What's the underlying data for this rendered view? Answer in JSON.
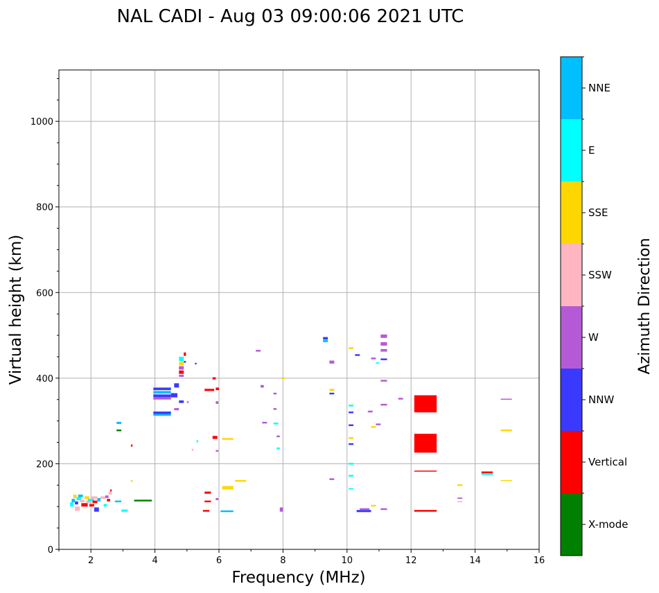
{
  "chart_data": {
    "type": "scatter",
    "title": "NAL CADI - Aug 03 09:00:06 2021 UTC",
    "xlabel": "Frequency (MHz)",
    "ylabel": "Virtual height (km)",
    "xlim": [
      1,
      16
    ],
    "ylim": [
      0,
      1120
    ],
    "xticks": [
      2,
      4,
      6,
      8,
      10,
      12,
      14,
      16
    ],
    "yticks": [
      0,
      200,
      400,
      600,
      800,
      1000
    ],
    "grid": true,
    "colorbar": {
      "label": "Azimuth Direction",
      "categories": [
        {
          "name": "X-mode",
          "color": "#008000"
        },
        {
          "name": "Vertical",
          "color": "#ff0000"
        },
        {
          "name": "NNW",
          "color": "#3a3aff"
        },
        {
          "name": "W",
          "color": "#b45ad6"
        },
        {
          "name": "SSW",
          "color": "#ffb6c1"
        },
        {
          "name": "SSE",
          "color": "#ffd700"
        },
        {
          "name": "E",
          "color": "#00ffff"
        },
        {
          "name": "NNE",
          "color": "#00bfff"
        }
      ]
    },
    "points": [
      {
        "f": 1.35,
        "f2": 1.45,
        "h": 100,
        "h2": 110,
        "c": "E"
      },
      {
        "f": 1.4,
        "f2": 1.5,
        "h": 110,
        "h2": 118,
        "c": "NNE"
      },
      {
        "f": 1.45,
        "f2": 1.55,
        "h": 120,
        "h2": 128,
        "c": "SSE"
      },
      {
        "f": 1.5,
        "f2": 1.6,
        "h": 105,
        "h2": 112,
        "c": "NNW"
      },
      {
        "f": 1.5,
        "f2": 1.65,
        "h": 90,
        "h2": 100,
        "c": "SSW"
      },
      {
        "f": 1.55,
        "f2": 1.7,
        "h": 115,
        "h2": 122,
        "c": "E"
      },
      {
        "f": 1.6,
        "f2": 1.75,
        "h": 122,
        "h2": 128,
        "c": "NNE"
      },
      {
        "f": 1.65,
        "f2": 1.8,
        "h": 110,
        "h2": 116,
        "c": "SSW"
      },
      {
        "f": 1.7,
        "f2": 1.9,
        "h": 100,
        "h2": 108,
        "c": "Vertical"
      },
      {
        "f": 1.8,
        "f2": 1.95,
        "h": 118,
        "h2": 124,
        "c": "SSE"
      },
      {
        "f": 1.85,
        "f2": 2.0,
        "h": 108,
        "h2": 114,
        "c": "SSW"
      },
      {
        "f": 1.9,
        "f2": 2.1,
        "h": 112,
        "h2": 118,
        "c": "E"
      },
      {
        "f": 1.95,
        "f2": 2.1,
        "h": 100,
        "h2": 106,
        "c": "Vertical"
      },
      {
        "f": 2.0,
        "f2": 2.2,
        "h": 118,
        "h2": 124,
        "c": "SSW"
      },
      {
        "f": 2.05,
        "f2": 2.2,
        "h": 108,
        "h2": 114,
        "c": "Vertical"
      },
      {
        "f": 2.1,
        "f2": 2.25,
        "h": 88,
        "h2": 98,
        "c": "NNW"
      },
      {
        "f": 2.2,
        "f2": 2.3,
        "h": 112,
        "h2": 120,
        "c": "NNE"
      },
      {
        "f": 2.3,
        "f2": 2.45,
        "h": 118,
        "h2": 124,
        "c": "SSW"
      },
      {
        "f": 2.4,
        "f2": 2.5,
        "h": 100,
        "h2": 106,
        "c": "E"
      },
      {
        "f": 2.45,
        "f2": 2.55,
        "h": 120,
        "h2": 126,
        "c": "W"
      },
      {
        "f": 2.5,
        "f2": 2.6,
        "h": 112,
        "h2": 118,
        "c": "Vertical"
      },
      {
        "f": 2.55,
        "f2": 2.65,
        "h": 128,
        "h2": 134,
        "c": "SSW"
      },
      {
        "f": 2.6,
        "f2": 2.65,
        "h": 135,
        "h2": 140,
        "c": "Vertical"
      },
      {
        "f": 2.8,
        "f2": 2.95,
        "h": 293,
        "h2": 298,
        "c": "NNE"
      },
      {
        "f": 2.8,
        "f2": 2.95,
        "h": 276,
        "h2": 280,
        "c": "X-mode"
      },
      {
        "f": 2.75,
        "f2": 2.95,
        "h": 110,
        "h2": 114,
        "c": "NNE"
      },
      {
        "f": 2.95,
        "f2": 3.15,
        "h": 88,
        "h2": 93,
        "c": "E"
      },
      {
        "f": 3.35,
        "f2": 3.9,
        "h": 112,
        "h2": 116,
        "c": "X-mode"
      },
      {
        "f": 3.25,
        "f2": 3.3,
        "h": 240,
        "h2": 245,
        "c": "Vertical"
      },
      {
        "f": 3.25,
        "f2": 3.3,
        "h": 158,
        "h2": 162,
        "c": "SSE"
      },
      {
        "f": 3.95,
        "f2": 4.5,
        "h": 316,
        "h2": 322,
        "c": "NNW"
      },
      {
        "f": 3.95,
        "f2": 4.5,
        "h": 312,
        "h2": 316,
        "c": "NNE"
      },
      {
        "f": 3.95,
        "f2": 4.5,
        "h": 350,
        "h2": 356,
        "c": "W"
      },
      {
        "f": 3.95,
        "f2": 4.5,
        "h": 356,
        "h2": 362,
        "c": "NNW"
      },
      {
        "f": 3.95,
        "f2": 4.5,
        "h": 364,
        "h2": 370,
        "c": "NNE"
      },
      {
        "f": 3.95,
        "f2": 4.5,
        "h": 372,
        "h2": 378,
        "c": "NNW"
      },
      {
        "f": 4.5,
        "f2": 4.7,
        "h": 355,
        "h2": 365,
        "c": "NNW"
      },
      {
        "f": 4.6,
        "f2": 4.75,
        "h": 378,
        "h2": 388,
        "c": "NNW"
      },
      {
        "f": 4.75,
        "f2": 4.9,
        "h": 440,
        "h2": 450,
        "c": "E"
      },
      {
        "f": 4.75,
        "f2": 4.9,
        "h": 430,
        "h2": 438,
        "c": "SSE"
      },
      {
        "f": 4.75,
        "f2": 4.9,
        "h": 420,
        "h2": 428,
        "c": "W"
      },
      {
        "f": 4.75,
        "f2": 4.9,
        "h": 410,
        "h2": 418,
        "c": "Vertical"
      },
      {
        "f": 4.75,
        "f2": 4.9,
        "h": 403,
        "h2": 408,
        "c": "W"
      },
      {
        "f": 4.75,
        "f2": 4.9,
        "h": 342,
        "h2": 348,
        "c": "NNW"
      },
      {
        "f": 4.6,
        "f2": 4.75,
        "h": 325,
        "h2": 330,
        "c": "W"
      },
      {
        "f": 4.9,
        "f2": 4.97,
        "h": 452,
        "h2": 460,
        "c": "Vertical"
      },
      {
        "f": 4.9,
        "f2": 4.97,
        "h": 436,
        "h2": 440,
        "c": "NNW"
      },
      {
        "f": 5.0,
        "f2": 5.05,
        "h": 342,
        "h2": 346,
        "c": "W"
      },
      {
        "f": 5.25,
        "f2": 5.3,
        "h": 432,
        "h2": 436,
        "c": "NNW"
      },
      {
        "f": 5.3,
        "f2": 5.35,
        "h": 250,
        "h2": 255,
        "c": "E"
      },
      {
        "f": 5.15,
        "f2": 5.2,
        "h": 230,
        "h2": 235,
        "c": "SSW"
      },
      {
        "f": 5.55,
        "f2": 5.85,
        "h": 370,
        "h2": 375,
        "c": "Vertical"
      },
      {
        "f": 5.55,
        "f2": 5.75,
        "h": 130,
        "h2": 135,
        "c": "Vertical"
      },
      {
        "f": 5.55,
        "f2": 5.75,
        "h": 110,
        "h2": 114,
        "c": "Vertical"
      },
      {
        "f": 5.5,
        "f2": 5.7,
        "h": 88,
        "h2": 92,
        "c": "Vertical"
      },
      {
        "f": 5.8,
        "f2": 5.95,
        "h": 258,
        "h2": 265,
        "c": "Vertical"
      },
      {
        "f": 5.8,
        "f2": 5.9,
        "h": 397,
        "h2": 402,
        "c": "Vertical"
      },
      {
        "f": 5.9,
        "f2": 6.0,
        "h": 372,
        "h2": 378,
        "c": "Vertical"
      },
      {
        "f": 5.9,
        "f2": 5.98,
        "h": 340,
        "h2": 346,
        "c": "W"
      },
      {
        "f": 5.9,
        "f2": 5.98,
        "h": 228,
        "h2": 232,
        "c": "W"
      },
      {
        "f": 5.9,
        "f2": 5.98,
        "h": 115,
        "h2": 120,
        "c": "W"
      },
      {
        "f": 6.1,
        "f2": 6.45,
        "h": 256,
        "h2": 260,
        "c": "SSE"
      },
      {
        "f": 6.1,
        "f2": 6.45,
        "h": 140,
        "h2": 148,
        "c": "SSE"
      },
      {
        "f": 6.5,
        "f2": 6.85,
        "h": 158,
        "h2": 162,
        "c": "SSE"
      },
      {
        "f": 6.05,
        "f2": 6.45,
        "h": 87,
        "h2": 91,
        "c": "NNE"
      },
      {
        "f": 7.15,
        "f2": 7.3,
        "h": 462,
        "h2": 466,
        "c": "W"
      },
      {
        "f": 7.3,
        "f2": 7.4,
        "h": 378,
        "h2": 384,
        "c": "W"
      },
      {
        "f": 7.35,
        "f2": 7.5,
        "h": 294,
        "h2": 298,
        "c": "W"
      },
      {
        "f": 7.7,
        "f2": 7.8,
        "h": 362,
        "h2": 366,
        "c": "W"
      },
      {
        "f": 7.7,
        "f2": 7.8,
        "h": 326,
        "h2": 330,
        "c": "W"
      },
      {
        "f": 7.7,
        "f2": 7.85,
        "h": 292,
        "h2": 296,
        "c": "E"
      },
      {
        "f": 7.8,
        "f2": 7.9,
        "h": 262,
        "h2": 266,
        "c": "W"
      },
      {
        "f": 7.8,
        "f2": 7.9,
        "h": 234,
        "h2": 238,
        "c": "E"
      },
      {
        "f": 7.9,
        "f2": 8.0,
        "h": 88,
        "h2": 98,
        "c": "W"
      },
      {
        "f": 7.95,
        "f2": 8.05,
        "h": 398,
        "h2": 402,
        "c": "SSE"
      },
      {
        "f": 9.25,
        "f2": 9.4,
        "h": 490,
        "h2": 496,
        "c": "NNW"
      },
      {
        "f": 9.25,
        "f2": 9.4,
        "h": 484,
        "h2": 489,
        "c": "NNE"
      },
      {
        "f": 9.45,
        "f2": 9.6,
        "h": 434,
        "h2": 441,
        "c": "W"
      },
      {
        "f": 9.45,
        "f2": 9.6,
        "h": 370,
        "h2": 375,
        "c": "SSE"
      },
      {
        "f": 9.45,
        "f2": 9.6,
        "h": 362,
        "h2": 366,
        "c": "NNW"
      },
      {
        "f": 9.45,
        "f2": 9.6,
        "h": 162,
        "h2": 166,
        "c": "W"
      },
      {
        "f": 10.05,
        "f2": 10.2,
        "h": 468,
        "h2": 472,
        "c": "SSE"
      },
      {
        "f": 10.25,
        "f2": 10.4,
        "h": 452,
        "h2": 456,
        "c": "NNW"
      },
      {
        "f": 10.05,
        "f2": 10.2,
        "h": 334,
        "h2": 338,
        "c": "E"
      },
      {
        "f": 10.05,
        "f2": 10.2,
        "h": 318,
        "h2": 322,
        "c": "NNW"
      },
      {
        "f": 10.05,
        "f2": 10.2,
        "h": 288,
        "h2": 292,
        "c": "NNW"
      },
      {
        "f": 10.05,
        "f2": 10.2,
        "h": 258,
        "h2": 262,
        "c": "SSE"
      },
      {
        "f": 10.05,
        "f2": 10.2,
        "h": 244,
        "h2": 248,
        "c": "NNW"
      },
      {
        "f": 10.05,
        "f2": 10.2,
        "h": 198,
        "h2": 202,
        "c": "E"
      },
      {
        "f": 10.05,
        "f2": 10.2,
        "h": 170,
        "h2": 174,
        "c": "E"
      },
      {
        "f": 10.05,
        "f2": 10.2,
        "h": 140,
        "h2": 143,
        "c": "E"
      },
      {
        "f": 10.3,
        "f2": 10.75,
        "h": 87,
        "h2": 92,
        "c": "NNW"
      },
      {
        "f": 10.4,
        "f2": 10.7,
        "h": 92,
        "h2": 96,
        "c": "W"
      },
      {
        "f": 10.75,
        "f2": 10.9,
        "h": 100,
        "h2": 104,
        "c": "SSE"
      },
      {
        "f": 10.65,
        "f2": 10.8,
        "h": 320,
        "h2": 324,
        "c": "W"
      },
      {
        "f": 10.75,
        "f2": 10.9,
        "h": 284,
        "h2": 288,
        "c": "SSE"
      },
      {
        "f": 10.75,
        "f2": 10.9,
        "h": 444,
        "h2": 448,
        "c": "W"
      },
      {
        "f": 10.9,
        "f2": 11.0,
        "h": 434,
        "h2": 437,
        "c": "E"
      },
      {
        "f": 10.9,
        "f2": 11.05,
        "h": 290,
        "h2": 294,
        "c": "W"
      },
      {
        "f": 11.05,
        "f2": 11.25,
        "h": 494,
        "h2": 502,
        "c": "W"
      },
      {
        "f": 11.05,
        "f2": 11.25,
        "h": 476,
        "h2": 484,
        "c": "W"
      },
      {
        "f": 11.05,
        "f2": 11.25,
        "h": 462,
        "h2": 468,
        "c": "W"
      },
      {
        "f": 11.05,
        "f2": 11.25,
        "h": 442,
        "h2": 446,
        "c": "NNW"
      },
      {
        "f": 11.05,
        "f2": 11.25,
        "h": 392,
        "h2": 396,
        "c": "W"
      },
      {
        "f": 11.05,
        "f2": 11.25,
        "h": 336,
        "h2": 340,
        "c": "W"
      },
      {
        "f": 11.05,
        "f2": 11.25,
        "h": 92,
        "h2": 96,
        "c": "W"
      },
      {
        "f": 11.6,
        "f2": 11.75,
        "h": 350,
        "h2": 354,
        "c": "W"
      },
      {
        "f": 12.1,
        "f2": 12.8,
        "h": 320,
        "h2": 360,
        "c": "Vertical"
      },
      {
        "f": 12.1,
        "f2": 12.8,
        "h": 226,
        "h2": 270,
        "c": "Vertical"
      },
      {
        "f": 12.1,
        "f2": 12.8,
        "h": 182,
        "h2": 184,
        "c": "Vertical"
      },
      {
        "f": 12.1,
        "f2": 12.8,
        "h": 88,
        "h2": 92,
        "c": "Vertical"
      },
      {
        "f": 13.45,
        "f2": 13.6,
        "h": 148,
        "h2": 152,
        "c": "SSE"
      },
      {
        "f": 13.45,
        "f2": 13.6,
        "h": 118,
        "h2": 121,
        "c": "W"
      },
      {
        "f": 13.45,
        "f2": 13.6,
        "h": 110,
        "h2": 113,
        "c": "SSW"
      },
      {
        "f": 14.2,
        "f2": 14.55,
        "h": 178,
        "h2": 182,
        "c": "Vertical"
      },
      {
        "f": 14.2,
        "f2": 14.55,
        "h": 174,
        "h2": 178,
        "c": "E"
      },
      {
        "f": 14.8,
        "f2": 15.15,
        "h": 350,
        "h2": 352,
        "c": "W"
      },
      {
        "f": 14.8,
        "f2": 15.15,
        "h": 276,
        "h2": 280,
        "c": "SSE"
      },
      {
        "f": 14.8,
        "f2": 15.15,
        "h": 160,
        "h2": 162,
        "c": "SSE"
      }
    ]
  }
}
